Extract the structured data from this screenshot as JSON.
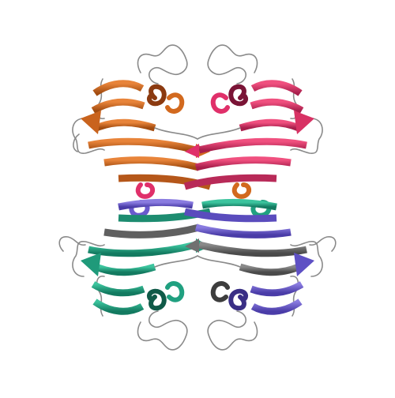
{
  "image": {
    "subject": "protein-tetramer-ribbon",
    "background": "#ffffff"
  },
  "chains": [
    {
      "name": "chain-orange",
      "color": "#d2691e",
      "dark": "#8b4513"
    },
    {
      "name": "chain-magenta",
      "color": "#e0306a",
      "dark": "#8b1a3c"
    },
    {
      "name": "chain-teal",
      "color": "#20a080",
      "dark": "#0f5a48"
    },
    {
      "name": "chain-slate-blue",
      "color": "#6a5acd",
      "dark": "#3a2f85"
    },
    {
      "name": "chain-grey",
      "color": "#707070",
      "dark": "#3d3d3d"
    }
  ],
  "loop_color": "#8a8a8a"
}
